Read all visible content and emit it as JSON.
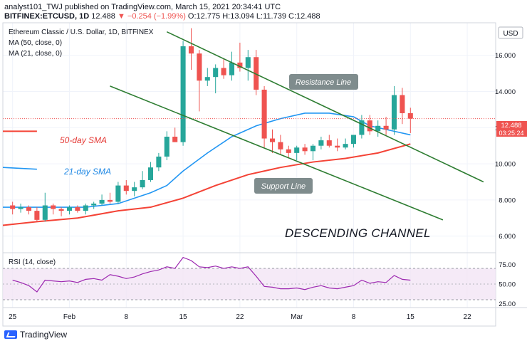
{
  "header": {
    "line1": "analyst101_TWJ published on TradingView.com, March 15, 2021 20:34:41 UTC",
    "symbol": "BITFINEX:ETCUSD, 1D",
    "last": "12.488",
    "change": "▼ −0.254 (−1.99%)",
    "ohlc": "O:12.775 H:13.094 L:11.739 C:12.488"
  },
  "legend": {
    "title": "Ethereum Classic / U.S. Dollar, 1D, BITFINEX",
    "ma50": "MA (50, close, 0)",
    "ma21": "MA (21, close, 0)"
  },
  "currency_button": "USD",
  "price_tag": {
    "value": "12.488",
    "countdown": "03:25:24",
    "color": "#ef5350"
  },
  "annotations": {
    "resistance": "Resistance Line",
    "support": "Support Line",
    "channel": "DESCENDING CHANNEL",
    "sma50": "50-day SMA",
    "sma21": "21-day SMA"
  },
  "rsi_label": "RSI (14, close)",
  "footer": "TradingView",
  "colors": {
    "up": "#26a69a",
    "down": "#ef5350",
    "ma50": "#f44336",
    "ma21": "#2196f3",
    "channel": "#2e7d32",
    "rsi": "#9c27b0"
  },
  "chart_data": {
    "type": "candlestick",
    "title": "Ethereum Classic / U.S. Dollar, 1D, BITFINEX",
    "y_ticks": [
      "16.000",
      "14.000",
      "12.000",
      "10.000",
      "8.000",
      "6.000"
    ],
    "y_tick_values": [
      16,
      14,
      12,
      10,
      8,
      6
    ],
    "ylim": [
      5.2,
      17.8
    ],
    "x_ticks": [
      "25",
      "Feb",
      "8",
      "15",
      "22",
      "Mar",
      "8",
      "15",
      "22"
    ],
    "x_tick_days": [
      0,
      7,
      14,
      21,
      28,
      35,
      42,
      49,
      56
    ],
    "xlim": [
      -1.2,
      59.5
    ],
    "ohlc": [
      [
        0,
        7.7,
        7.9,
        7.2,
        7.5
      ],
      [
        1,
        7.5,
        7.8,
        7.3,
        7.6
      ],
      [
        2,
        7.6,
        7.7,
        7.2,
        7.4
      ],
      [
        3,
        7.4,
        7.6,
        6.8,
        6.9
      ],
      [
        4,
        6.9,
        8.4,
        6.8,
        7.7
      ],
      [
        5,
        7.7,
        7.8,
        7.2,
        7.5
      ],
      [
        6,
        7.5,
        7.6,
        7.1,
        7.4
      ],
      [
        7,
        7.4,
        7.7,
        7.2,
        7.6
      ],
      [
        8,
        7.6,
        7.7,
        7.3,
        7.4
      ],
      [
        9,
        7.4,
        7.8,
        7.2,
        7.7
      ],
      [
        10,
        7.7,
        7.9,
        7.5,
        7.8
      ],
      [
        11,
        7.8,
        8.3,
        7.7,
        8.0
      ],
      [
        12,
        8.0,
        8.4,
        7.8,
        7.9
      ],
      [
        13,
        7.9,
        9.0,
        7.8,
        8.8
      ],
      [
        14,
        8.8,
        9.1,
        8.3,
        8.5
      ],
      [
        15,
        8.5,
        9.0,
        8.2,
        8.7
      ],
      [
        16,
        8.7,
        9.6,
        8.6,
        9.1
      ],
      [
        17,
        9.1,
        10.1,
        9.0,
        9.8
      ],
      [
        18,
        9.8,
        10.6,
        9.6,
        10.4
      ],
      [
        19,
        10.4,
        11.8,
        10.2,
        11.5
      ],
      [
        20,
        11.5,
        12.0,
        11.2,
        11.2
      ],
      [
        21,
        11.2,
        16.8,
        11.0,
        16.5
      ],
      [
        22,
        16.5,
        17.5,
        15.2,
        16.1
      ],
      [
        23,
        16.1,
        16.3,
        12.9,
        14.6
      ],
      [
        24,
        14.6,
        15.3,
        14.3,
        14.8
      ],
      [
        25,
        14.8,
        15.5,
        13.9,
        15.3
      ],
      [
        26,
        15.3,
        15.8,
        14.7,
        14.9
      ],
      [
        27,
        14.9,
        16.2,
        14.6,
        15.6
      ],
      [
        28,
        15.6,
        16.7,
        15.1,
        15.3
      ],
      [
        29,
        15.3,
        16.3,
        14.6,
        15.9
      ],
      [
        30,
        15.9,
        16.3,
        13.8,
        14.1
      ],
      [
        31,
        14.1,
        14.3,
        10.9,
        11.4
      ],
      [
        32,
        11.4,
        11.9,
        10.6,
        11.2
      ],
      [
        33,
        11.2,
        11.6,
        10.5,
        10.8
      ],
      [
        34,
        10.8,
        11.0,
        10.3,
        10.6
      ],
      [
        35,
        10.6,
        11.0,
        10.2,
        10.9
      ],
      [
        36,
        10.9,
        11.1,
        10.5,
        10.7
      ],
      [
        37,
        10.7,
        11.1,
        10.2,
        11.0
      ],
      [
        38,
        11.0,
        11.5,
        10.8,
        11.3
      ],
      [
        39,
        11.3,
        11.6,
        10.9,
        11.0
      ],
      [
        40,
        11.0,
        11.4,
        10.7,
        10.9
      ],
      [
        41,
        10.9,
        11.4,
        10.8,
        11.1
      ],
      [
        42,
        11.1,
        11.6,
        10.9,
        11.6
      ],
      [
        43,
        11.6,
        12.7,
        11.4,
        12.4
      ],
      [
        44,
        12.4,
        12.7,
        11.6,
        11.8
      ],
      [
        45,
        11.8,
        12.4,
        11.5,
        12.1
      ],
      [
        46,
        12.1,
        12.6,
        11.6,
        11.9
      ],
      [
        47,
        11.9,
        14.3,
        11.6,
        13.8
      ],
      [
        48,
        13.8,
        14.2,
        12.2,
        12.8
      ],
      [
        49,
        12.8,
        13.1,
        11.7,
        12.5
      ]
    ],
    "ma50": [
      [
        -1.2,
        6.6
      ],
      [
        3,
        6.8
      ],
      [
        8,
        7.0
      ],
      [
        13,
        7.4
      ],
      [
        17,
        7.6
      ],
      [
        21,
        8.1
      ],
      [
        25,
        8.8
      ],
      [
        29,
        9.4
      ],
      [
        33,
        9.8
      ],
      [
        37,
        10.1
      ],
      [
        41,
        10.3
      ],
      [
        45,
        10.6
      ],
      [
        49,
        11.1
      ]
    ],
    "ma21": [
      [
        -1.2,
        7.6
      ],
      [
        5,
        7.6
      ],
      [
        9,
        7.6
      ],
      [
        13,
        7.8
      ],
      [
        17,
        8.4
      ],
      [
        19,
        8.8
      ],
      [
        21,
        9.6
      ],
      [
        24,
        10.6
      ],
      [
        27,
        11.5
      ],
      [
        30,
        12.1
      ],
      [
        33,
        12.5
      ],
      [
        36,
        12.8
      ],
      [
        39,
        12.8
      ],
      [
        42,
        12.6
      ],
      [
        44,
        12.1
      ],
      [
        47,
        11.8
      ],
      [
        49,
        11.6
      ]
    ],
    "ma50_label_segment": [
      [
        -1.2,
        11.8
      ],
      [
        3,
        11.8
      ]
    ],
    "ma21_label_segment": [
      [
        -1.2,
        9.8
      ],
      [
        3,
        9.7
      ]
    ],
    "resistance_line": [
      [
        19,
        17.3
      ],
      [
        58,
        9.0
      ]
    ],
    "support_line": [
      [
        12,
        14.3
      ],
      [
        53,
        6.9
      ]
    ],
    "rsi": {
      "ticks": [
        "75.00",
        "50.00",
        "25.00"
      ],
      "tick_values": [
        75,
        50,
        25
      ],
      "ylim": [
        20,
        90
      ],
      "band": [
        30,
        70
      ],
      "values": [
        [
          0,
          55
        ],
        [
          1,
          52
        ],
        [
          2,
          48
        ],
        [
          3,
          40
        ],
        [
          4,
          55
        ],
        [
          5,
          54
        ],
        [
          6,
          53
        ],
        [
          7,
          54
        ],
        [
          8,
          52
        ],
        [
          9,
          56
        ],
        [
          10,
          57
        ],
        [
          11,
          55
        ],
        [
          12,
          62
        ],
        [
          13,
          60
        ],
        [
          14,
          57
        ],
        [
          15,
          59
        ],
        [
          16,
          63
        ],
        [
          17,
          66
        ],
        [
          18,
          68
        ],
        [
          19,
          72
        ],
        [
          20,
          70
        ],
        [
          21,
          84
        ],
        [
          22,
          80
        ],
        [
          23,
          72
        ],
        [
          24,
          71
        ],
        [
          25,
          73
        ],
        [
          26,
          70
        ],
        [
          27,
          72
        ],
        [
          28,
          70
        ],
        [
          29,
          72
        ],
        [
          30,
          60
        ],
        [
          31,
          47
        ],
        [
          32,
          46
        ],
        [
          33,
          44
        ],
        [
          34,
          44
        ],
        [
          35,
          45
        ],
        [
          36,
          43
        ],
        [
          37,
          46
        ],
        [
          38,
          48
        ],
        [
          39,
          45
        ],
        [
          40,
          44
        ],
        [
          41,
          46
        ],
        [
          42,
          48
        ],
        [
          43,
          55
        ],
        [
          44,
          51
        ],
        [
          45,
          53
        ],
        [
          46,
          52
        ],
        [
          47,
          61
        ],
        [
          48,
          56
        ],
        [
          49,
          55
        ]
      ]
    }
  }
}
